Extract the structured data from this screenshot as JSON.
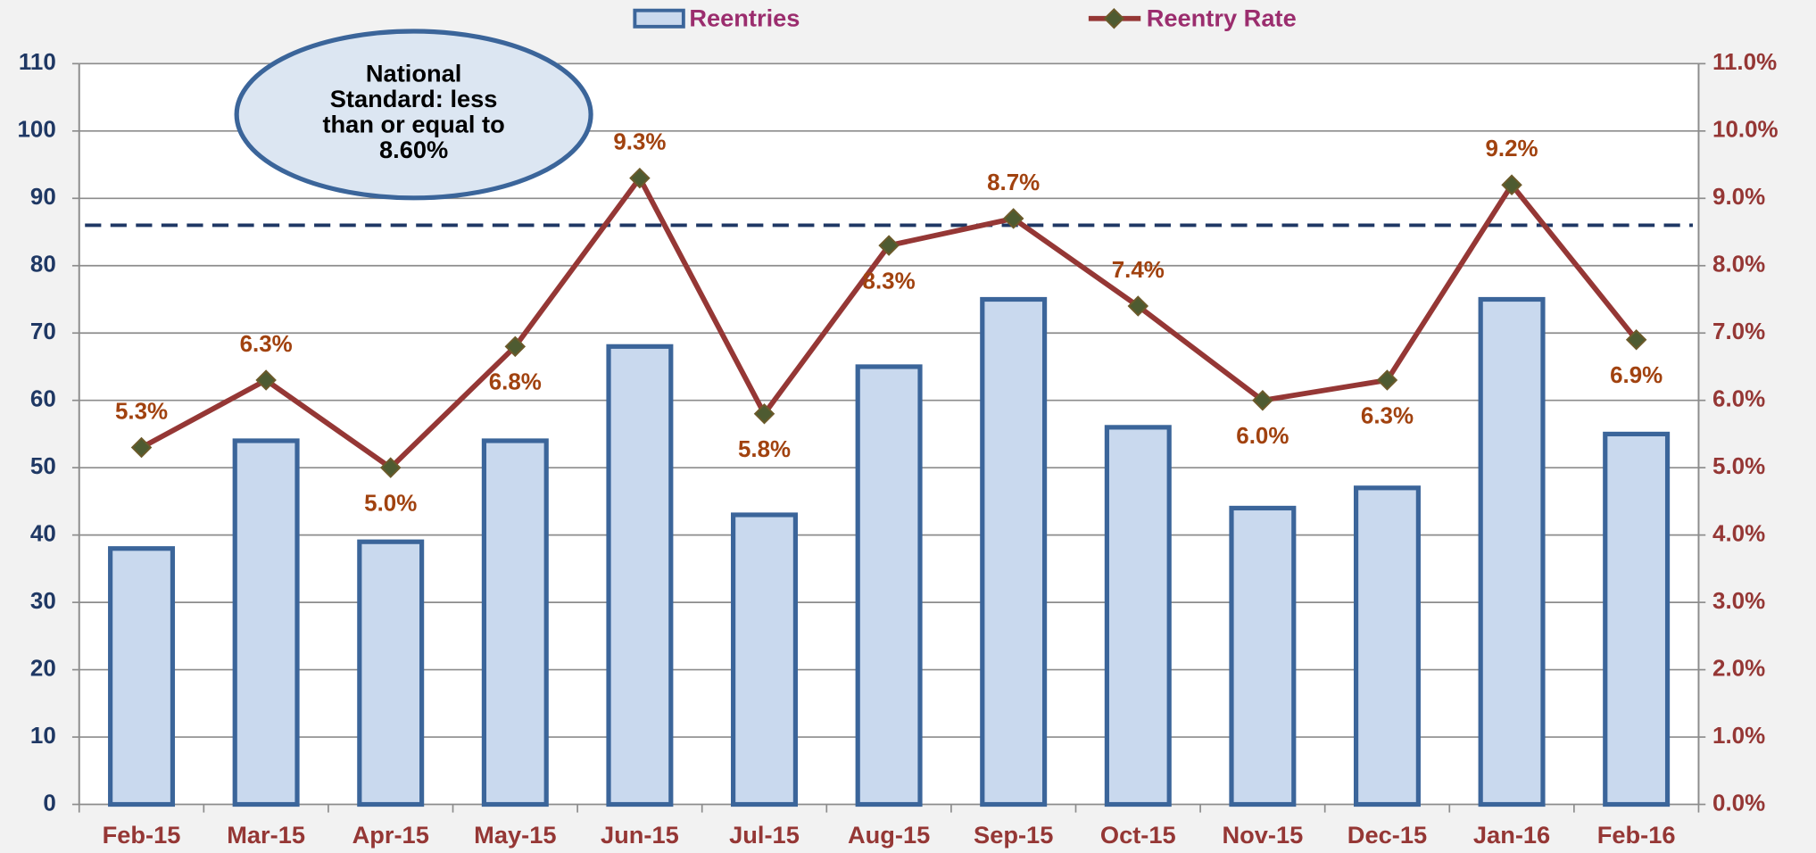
{
  "chart_data": {
    "type": "bar-line",
    "categories": [
      "Feb-15",
      "Mar-15",
      "Apr-15",
      "May-15",
      "Jun-15",
      "Jul-15",
      "Aug-15",
      "Sep-15",
      "Oct-15",
      "Nov-15",
      "Dec-15",
      "Jan-16",
      "Feb-16"
    ],
    "series": [
      {
        "name": "Reentries",
        "type": "bar",
        "color": "#c9d9ee",
        "stroke": "#3b659a",
        "values": [
          38,
          54,
          39,
          54,
          68,
          43,
          65,
          75,
          56,
          44,
          47,
          75,
          55
        ]
      },
      {
        "name": "Reentry Rate",
        "type": "line",
        "axis": "y2",
        "color": "#953735",
        "marker_color": "#4e5b31",
        "values": [
          5.3,
          6.3,
          5.0,
          6.8,
          9.3,
          5.8,
          8.3,
          8.7,
          7.4,
          6.0,
          6.3,
          9.2,
          6.9
        ],
        "value_labels": [
          "5.3%",
          "6.3%",
          "5.0%",
          "6.8%",
          "9.3%",
          "5.8%",
          "8.3%",
          "8.7%",
          "7.4%",
          "6.0%",
          "6.3%",
          "9.2%",
          "6.9%"
        ]
      }
    ],
    "ylim": [
      0,
      110
    ],
    "yticks": [
      0,
      10,
      20,
      30,
      40,
      50,
      60,
      70,
      80,
      90,
      100,
      110
    ],
    "y2lim": [
      0,
      11
    ],
    "y2ticks": [
      {
        "value": 0,
        "label": "0.0%"
      },
      {
        "value": 1,
        "label": "1.0%"
      },
      {
        "value": 2,
        "label": "2.0%"
      },
      {
        "value": 3,
        "label": "3.0%"
      },
      {
        "value": 4,
        "label": "4.0%"
      },
      {
        "value": 5,
        "label": "5.0%"
      },
      {
        "value": 6,
        "label": "6.0%"
      },
      {
        "value": 7,
        "label": "7.0%"
      },
      {
        "value": 8,
        "label": "8.0%"
      },
      {
        "value": 9,
        "label": "9.0%"
      },
      {
        "value": 10,
        "label": "10.0%"
      },
      {
        "value": 11,
        "label": "11.0%"
      }
    ],
    "grid": true,
    "legend": "top",
    "reference_line": {
      "value": 8.6,
      "axis": "y2",
      "color": "#1f3864"
    },
    "annotation": [
      "National",
      "Standard: less",
      "than or equal to",
      "8.60%"
    ]
  }
}
